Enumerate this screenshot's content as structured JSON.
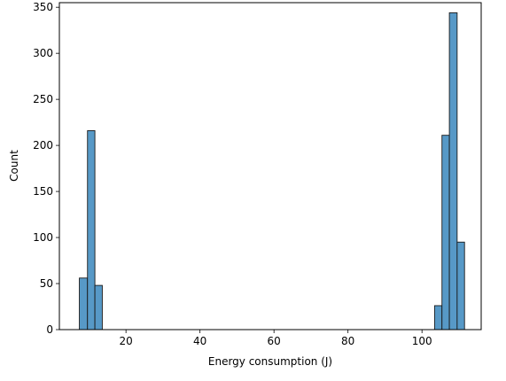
{
  "chart_data": {
    "type": "bar",
    "title": "",
    "xlabel": "Energy consumption (J)",
    "ylabel": "Count",
    "xlim": [
      2,
      116
    ],
    "ylim": [
      0,
      355
    ],
    "xticks": [
      20,
      40,
      60,
      80,
      100
    ],
    "yticks": [
      0,
      50,
      100,
      150,
      200,
      250,
      300,
      350
    ],
    "grid": false,
    "bar_color": "#5799c7",
    "edge_color": "#1a1a1a",
    "bins": [
      {
        "x0": 7.4,
        "x1": 9.6,
        "count": 56
      },
      {
        "x0": 9.6,
        "x1": 11.6,
        "count": 216
      },
      {
        "x0": 11.6,
        "x1": 13.6,
        "count": 48
      },
      {
        "x0": 103.4,
        "x1": 105.4,
        "count": 26
      },
      {
        "x0": 105.4,
        "x1": 107.4,
        "count": 211
      },
      {
        "x0": 107.4,
        "x1": 109.5,
        "count": 344
      },
      {
        "x0": 109.5,
        "x1": 111.5,
        "count": 95
      }
    ]
  }
}
